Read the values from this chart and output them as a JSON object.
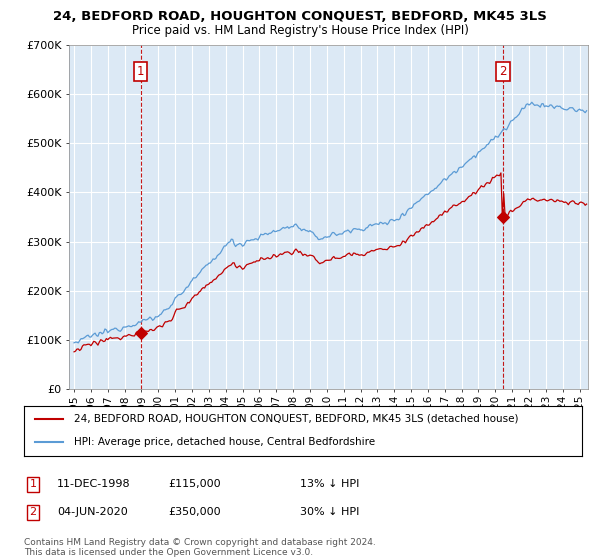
{
  "title": "24, BEDFORD ROAD, HOUGHTON CONQUEST, BEDFORD, MK45 3LS",
  "subtitle": "Price paid vs. HM Land Registry's House Price Index (HPI)",
  "background_color": "#ffffff",
  "plot_bg_color": "#dce9f5",
  "grid_color": "#ffffff",
  "hpi_color": "#5b9bd5",
  "price_color": "#c00000",
  "annotation1_date": "11-DEC-1998",
  "annotation1_price": 115000,
  "annotation1_price_str": "£115,000",
  "annotation1_pct": "13% ↓ HPI",
  "annotation1_year": 1998.92,
  "annotation2_date": "04-JUN-2020",
  "annotation2_price": 350000,
  "annotation2_price_str": "£350,000",
  "annotation2_pct": "30% ↓ HPI",
  "annotation2_year": 2020.42,
  "legend_line1": "24, BEDFORD ROAD, HOUGHTON CONQUEST, BEDFORD, MK45 3LS (detached house)",
  "legend_line2": "HPI: Average price, detached house, Central Bedfordshire",
  "footnote": "Contains HM Land Registry data © Crown copyright and database right 2024.\nThis data is licensed under the Open Government Licence v3.0.",
  "ylim": [
    0,
    700000
  ],
  "yticks": [
    0,
    100000,
    200000,
    300000,
    400000,
    500000,
    600000,
    700000
  ],
  "ytick_labels": [
    "£0",
    "£100K",
    "£200K",
    "£300K",
    "£400K",
    "£500K",
    "£600K",
    "£700K"
  ],
  "xlim_start": 1994.7,
  "xlim_end": 2025.5
}
